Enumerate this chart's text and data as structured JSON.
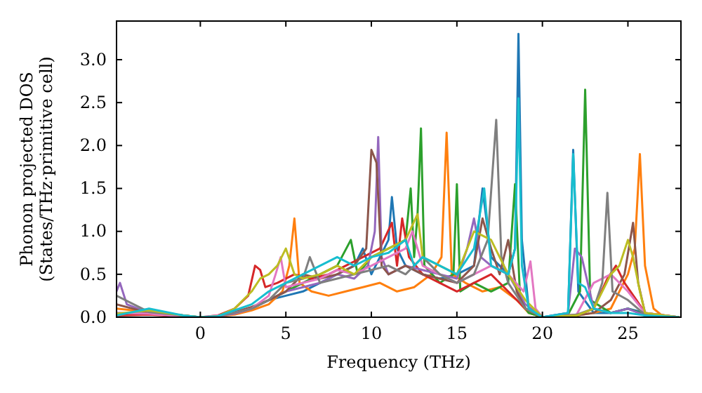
{
  "chart_data": {
    "type": "line",
    "xlabel": "Frequency (THz)",
    "ylabel": "Phonon projected DOS\n(States/THz·primitive cell)",
    "xlim": [
      -4.9,
      28.1
    ],
    "ylim": [
      0,
      3.45
    ],
    "xticks": [
      0,
      5,
      10,
      15,
      20,
      25
    ],
    "yticks": [
      {
        "value": 0,
        "label": "0.0"
      },
      {
        "value": 0.5,
        "label": "0.5"
      },
      {
        "value": 1,
        "label": "1.0"
      },
      {
        "value": 1.5,
        "label": "1.5"
      },
      {
        "value": 2,
        "label": "2.0"
      },
      {
        "value": 2.5,
        "label": "2.5"
      },
      {
        "value": 3,
        "label": "3.0"
      }
    ],
    "series": [
      {
        "color": "#1f77b4",
        "x": [
          -4.9,
          -4,
          -3,
          -2,
          -1,
          0,
          1,
          2,
          3,
          4,
          5,
          6,
          7,
          8,
          9,
          9.5,
          10,
          10.5,
          11,
          11.2,
          11.5,
          12,
          13,
          14,
          15,
          16,
          16.5,
          17,
          18,
          18.4,
          18.6,
          18.8,
          19.2,
          20,
          21.5,
          21.8,
          22.1,
          23,
          24,
          25,
          26,
          27,
          28
        ],
        "values": [
          0.05,
          0.04,
          0.05,
          0.03,
          0.01,
          0,
          0.01,
          0.05,
          0.1,
          0.2,
          0.25,
          0.3,
          0.4,
          0.5,
          0.6,
          0.8,
          0.5,
          0.7,
          0.9,
          1.4,
          0.8,
          0.6,
          0.5,
          0.45,
          0.5,
          0.6,
          1.5,
          0.7,
          0.5,
          0.8,
          3.3,
          0.9,
          0.1,
          0,
          0.05,
          1.95,
          0.3,
          0.05,
          0.05,
          0.1,
          0.05,
          0,
          0
        ]
      },
      {
        "color": "#ff7f0e",
        "x": [
          -4.9,
          0,
          1,
          2,
          3,
          4,
          4.8,
          5.2,
          5.5,
          5.8,
          6.5,
          7.5,
          8.5,
          9.5,
          10.5,
          11.5,
          12.5,
          13.5,
          14.1,
          14.4,
          14.7,
          15.5,
          16.5,
          17.5,
          18.5,
          19.2,
          20,
          22,
          23,
          24,
          25,
          25.4,
          25.7,
          26,
          26.5,
          27,
          28
        ],
        "values": [
          0.1,
          0,
          0.01,
          0.03,
          0.08,
          0.15,
          0.3,
          0.6,
          1.15,
          0.4,
          0.3,
          0.25,
          0.3,
          0.35,
          0.4,
          0.3,
          0.35,
          0.5,
          0.7,
          2.15,
          0.5,
          0.4,
          0.3,
          0.35,
          0.2,
          0.05,
          0,
          0.02,
          0.05,
          0.1,
          0.5,
          0.8,
          1.9,
          0.6,
          0.1,
          0.02,
          0
        ]
      },
      {
        "color": "#2ca02c",
        "x": [
          -4.9,
          -3,
          -1,
          0,
          1,
          2,
          3,
          4,
          5,
          6,
          7,
          8,
          8.8,
          9.2,
          10,
          11,
          12,
          12.3,
          12.5,
          12.7,
          12.9,
          13.1,
          14,
          14.8,
          15,
          15.2,
          16,
          17,
          18,
          18.4,
          18.7,
          19.2,
          20,
          21.5,
          22.2,
          22.5,
          22.8,
          24,
          25,
          26,
          28
        ],
        "values": [
          0.03,
          0.04,
          0.01,
          0,
          0.01,
          0.05,
          0.1,
          0.2,
          0.3,
          0.4,
          0.5,
          0.6,
          0.9,
          0.5,
          0.7,
          0.8,
          0.9,
          1.5,
          0.7,
          1.2,
          2.2,
          0.6,
          0.4,
          0.5,
          1.55,
          0.3,
          0.4,
          0.3,
          0.4,
          1.55,
          0.2,
          0.05,
          0,
          0.03,
          0.3,
          2.65,
          0.2,
          0.05,
          0.1,
          0.03,
          0
        ]
      },
      {
        "color": "#d62728",
        "x": [
          -4.9,
          -3,
          -1,
          0,
          1,
          2,
          2.8,
          3.2,
          3.5,
          3.8,
          4.5,
          5.5,
          6.5,
          7.5,
          8.5,
          9.5,
          10.5,
          11.2,
          11.5,
          11.8,
          12.2,
          13,
          14,
          15,
          16,
          17,
          18,
          19,
          20,
          22,
          23,
          23.8,
          24.3,
          24.8,
          25.5,
          26,
          28
        ],
        "values": [
          0.02,
          0.03,
          0.01,
          0,
          0.02,
          0.1,
          0.25,
          0.6,
          0.55,
          0.35,
          0.4,
          0.5,
          0.45,
          0.5,
          0.6,
          0.7,
          0.8,
          1.1,
          0.6,
          1.15,
          0.7,
          0.5,
          0.4,
          0.3,
          0.4,
          0.5,
          0.3,
          0.1,
          0,
          0.02,
          0.1,
          0.45,
          0.6,
          0.4,
          0.2,
          0.05,
          0
        ]
      },
      {
        "color": "#9467bd",
        "x": [
          -4.9,
          -4.7,
          -4.3,
          -3,
          -1,
          0,
          1,
          2,
          3,
          4,
          5,
          6,
          7,
          8,
          9,
          9.8,
          10.2,
          10.4,
          10.6,
          11,
          12,
          13,
          14,
          15,
          15.6,
          16,
          16.4,
          17,
          18,
          19,
          20,
          21.5,
          21.9,
          22.3,
          23,
          24,
          25,
          26,
          28
        ],
        "values": [
          0.3,
          0.4,
          0.15,
          0.05,
          0.02,
          0,
          0.01,
          0.04,
          0.1,
          0.2,
          0.3,
          0.35,
          0.4,
          0.5,
          0.45,
          0.6,
          1.0,
          2.1,
          0.7,
          0.5,
          0.6,
          0.55,
          0.5,
          0.45,
          0.8,
          1.15,
          0.7,
          0.6,
          0.5,
          0.15,
          0,
          0.05,
          0.8,
          0.7,
          0.1,
          0.05,
          0.1,
          0.02,
          0
        ]
      },
      {
        "color": "#8c564b",
        "x": [
          -4.9,
          -3,
          -1,
          0,
          1,
          2,
          3,
          4,
          5,
          6,
          7,
          8,
          9,
          9.7,
          10,
          10.3,
          10.6,
          11,
          12,
          13,
          14,
          15,
          16,
          16.5,
          17,
          17.5,
          18,
          18.5,
          19,
          20,
          22,
          23,
          24,
          24.8,
          25.3,
          25.6,
          26,
          28
        ],
        "values": [
          0.15,
          0.05,
          0.02,
          0,
          0.01,
          0.06,
          0.12,
          0.2,
          0.3,
          0.5,
          0.45,
          0.5,
          0.6,
          0.8,
          1.95,
          1.8,
          0.6,
          0.5,
          0.6,
          0.5,
          0.45,
          0.4,
          0.6,
          1.15,
          0.8,
          0.5,
          0.9,
          0.3,
          0.1,
          0,
          0.02,
          0.05,
          0.2,
          0.5,
          1.1,
          0.4,
          0.05,
          0
        ]
      },
      {
        "color": "#e377c2",
        "x": [
          -4.9,
          -3,
          -1,
          0,
          1,
          2,
          3,
          4,
          4.4,
          4.7,
          5,
          6,
          7,
          8,
          9,
          10,
          11,
          12,
          12.4,
          13,
          14,
          15,
          16,
          17,
          18,
          18.9,
          19.3,
          19.6,
          20,
          22,
          23,
          24,
          25,
          26,
          28
        ],
        "values": [
          0.05,
          0.04,
          0.01,
          0,
          0.02,
          0.05,
          0.1,
          0.25,
          0.5,
          0.7,
          0.35,
          0.4,
          0.45,
          0.55,
          0.5,
          0.6,
          0.7,
          0.8,
          1.0,
          0.6,
          0.5,
          0.4,
          0.5,
          0.6,
          0.5,
          0.3,
          0.65,
          0.1,
          0,
          0.03,
          0.4,
          0.5,
          0.3,
          0.05,
          0
        ]
      },
      {
        "color": "#7f7f7f",
        "x": [
          -4.9,
          -3,
          -1,
          0,
          1,
          2,
          3,
          4,
          5,
          6,
          6.4,
          7,
          8,
          9,
          10,
          11,
          12,
          13,
          14,
          15,
          16,
          16.8,
          17.3,
          17.6,
          18,
          19,
          20,
          22,
          23,
          23.5,
          23.8,
          24.1,
          25,
          26,
          28
        ],
        "values": [
          0.25,
          0.06,
          0.02,
          0,
          0.01,
          0.05,
          0.1,
          0.2,
          0.4,
          0.45,
          0.7,
          0.4,
          0.45,
          0.5,
          0.55,
          0.6,
          0.5,
          0.7,
          0.5,
          0.4,
          0.5,
          0.9,
          2.3,
          0.7,
          0.4,
          0.1,
          0,
          0.03,
          0.1,
          0.4,
          1.45,
          0.3,
          0.2,
          0.03,
          0
        ]
      },
      {
        "color": "#bcbd22",
        "x": [
          -4.9,
          -3,
          -1,
          0,
          1,
          2,
          3,
          3.5,
          4,
          4.5,
          5,
          5.5,
          6,
          7,
          8,
          9,
          10,
          11,
          12,
          12.7,
          13,
          14,
          15,
          16,
          17,
          18,
          19,
          20,
          22,
          23,
          24,
          24.5,
          25,
          25.3,
          25.7,
          26,
          28
        ],
        "values": [
          0.04,
          0.08,
          0.02,
          0,
          0.01,
          0.1,
          0.3,
          0.45,
          0.5,
          0.6,
          0.8,
          0.5,
          0.45,
          0.5,
          0.6,
          0.5,
          0.7,
          0.8,
          0.9,
          1.2,
          0.7,
          0.6,
          0.5,
          1.0,
          0.9,
          0.5,
          0.2,
          0,
          0.02,
          0.1,
          0.5,
          0.6,
          0.9,
          0.7,
          0.3,
          0.05,
          0
        ]
      },
      {
        "color": "#17becf",
        "x": [
          -4.9,
          -3,
          -1,
          0,
          1,
          2,
          3,
          4,
          5,
          6,
          7,
          8,
          9,
          10,
          11,
          12,
          12.5,
          13,
          14,
          15,
          16,
          16.6,
          17,
          18,
          18.4,
          18.6,
          18.8,
          19.2,
          20,
          21.5,
          21.8,
          22.1,
          22.5,
          23,
          24,
          25,
          26,
          28
        ],
        "values": [
          0.02,
          0.1,
          0.02,
          0,
          0.01,
          0.08,
          0.15,
          0.3,
          0.4,
          0.5,
          0.6,
          0.7,
          0.6,
          0.7,
          0.75,
          0.9,
          0.6,
          0.7,
          0.6,
          0.5,
          0.8,
          1.5,
          0.6,
          0.5,
          0.8,
          2.55,
          0.6,
          0.1,
          0,
          0.05,
          1.9,
          0.4,
          0.35,
          0.1,
          0.05,
          0.05,
          0.02,
          0
        ]
      }
    ]
  }
}
